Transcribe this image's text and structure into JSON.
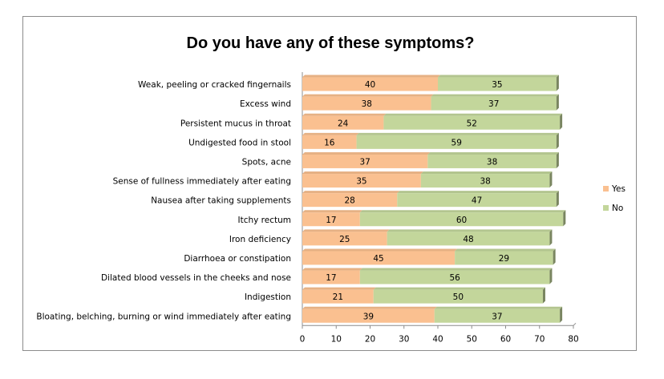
{
  "chart_data": {
    "type": "bar",
    "orientation": "horizontal",
    "stacked": true,
    "title": "Do you have any of these symptoms?",
    "categories": [
      "Weak, peeling or cracked fingernails",
      "Excess wind",
      "Persistent mucus in throat",
      "Undigested food in stool",
      "Spots, acne",
      "Sense of fullness immediately after eating",
      "Nausea after taking supplements",
      "Itchy rectum",
      "Iron deficiency",
      "Diarrhoea or constipation",
      "Dilated blood vessels in the cheeks and nose",
      "Indigestion",
      "Bloating, belching, burning or wind immediately after eating"
    ],
    "series": [
      {
        "name": "Yes",
        "color": "#FAC090",
        "values": [
          40,
          38,
          24,
          16,
          37,
          35,
          28,
          17,
          25,
          45,
          17,
          21,
          39
        ]
      },
      {
        "name": "No",
        "color": "#C3D69B",
        "values": [
          35,
          37,
          52,
          59,
          38,
          38,
          47,
          60,
          48,
          29,
          56,
          50,
          37
        ]
      }
    ],
    "xlim": [
      0,
      80
    ],
    "xticks": [
      0,
      10,
      20,
      30,
      40,
      50,
      60,
      70,
      80
    ],
    "legend_position": "right",
    "grid": false
  }
}
